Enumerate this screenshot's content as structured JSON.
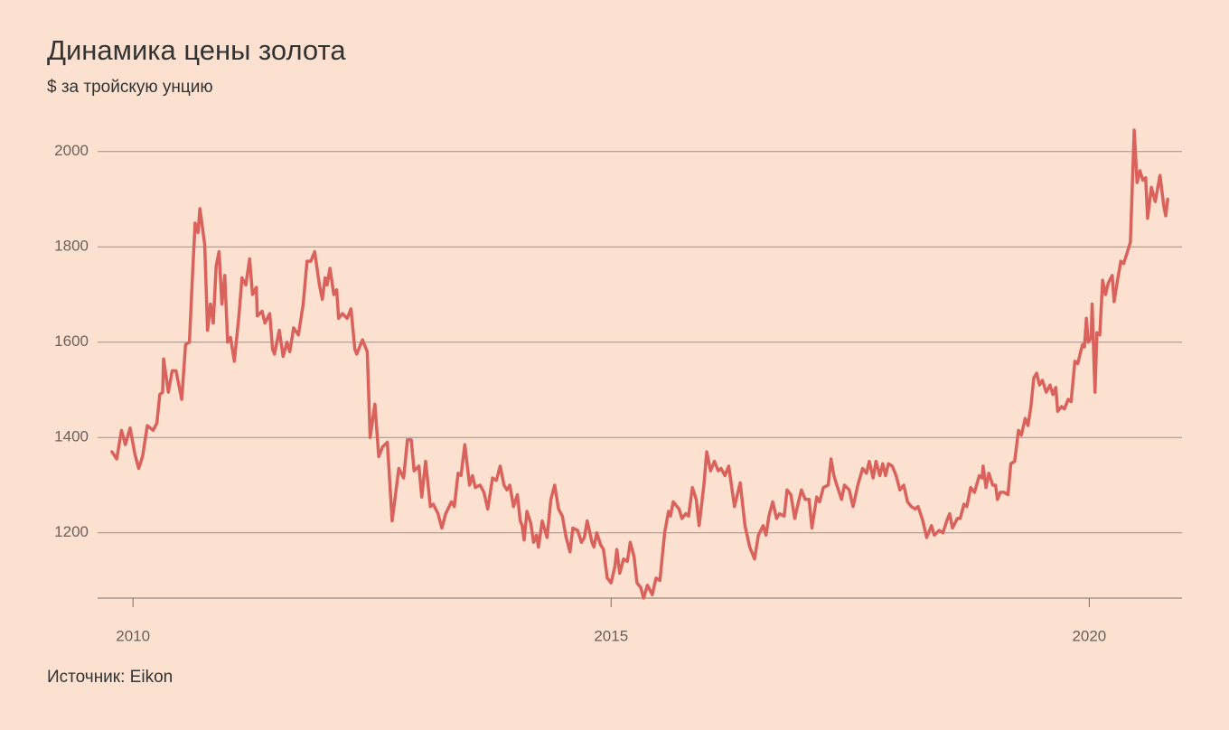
{
  "chart_data": {
    "type": "line",
    "title": "Динамика цены золота",
    "subtitle": "$ за тройскую унцию",
    "source": "Источник: Eikon",
    "color": "#d9625c",
    "grid": true,
    "xlim": [
      2009.63,
      2020.97
    ],
    "xticks": [
      2010,
      2015,
      2020
    ],
    "ylim": [
      1063,
      2100
    ],
    "yticks": [
      1200,
      1400,
      1600,
      1800,
      2000
    ],
    "x": [
      2009.78,
      2009.83,
      2009.88,
      2009.92,
      2009.97,
      2010.02,
      2010.06,
      2010.1,
      2010.15,
      2010.21,
      2010.25,
      2010.28,
      2010.31,
      2010.32,
      2010.37,
      2010.41,
      2010.45,
      2010.51,
      2010.55,
      2010.59,
      2010.62,
      2010.65,
      2010.68,
      2010.7,
      2010.75,
      2010.78,
      2010.81,
      2010.84,
      2010.87,
      2010.9,
      2010.93,
      2010.96,
      2010.99,
      2011.02,
      2011.06,
      2011.11,
      2011.14,
      2011.18,
      2011.22,
      2011.25,
      2011.29,
      2011.3,
      2011.35,
      2011.38,
      2011.43,
      2011.46,
      2011.48,
      2011.53,
      2011.57,
      2011.61,
      2011.64,
      2011.68,
      2011.73,
      2011.78,
      2011.82,
      2011.86,
      2011.9,
      2011.95,
      2011.98,
      2012.01,
      2012.03,
      2012.06,
      2012.1,
      2012.13,
      2012.15,
      2012.19,
      2012.24,
      2012.28,
      2012.32,
      2012.34,
      2012.4,
      2012.45,
      2012.48,
      2012.53,
      2012.57,
      2012.61,
      2012.66,
      2012.71,
      2012.78,
      2012.83,
      2012.87,
      2012.91,
      2012.94,
      2012.99,
      2013.02,
      2013.06,
      2013.11,
      2013.14,
      2013.19,
      2013.23,
      2013.27,
      2013.33,
      2013.36,
      2013.4,
      2013.43,
      2013.47,
      2013.52,
      2013.55,
      2013.58,
      2013.63,
      2013.67,
      2013.71,
      2013.76,
      2013.8,
      2013.84,
      2013.88,
      2013.91,
      2013.94,
      2013.98,
      2014.02,
      2014.05,
      2014.07,
      2014.09,
      2014.12,
      2014.16,
      2014.19,
      2014.22,
      2014.24,
      2014.28,
      2014.33,
      2014.37,
      2014.41,
      2014.45,
      2014.49,
      2014.53,
      2014.57,
      2014.6,
      2014.65,
      2014.69,
      2014.72,
      2014.75,
      2014.8,
      2014.82,
      2014.85,
      2014.89,
      2014.92,
      2014.96,
      2015.0,
      2015.04,
      2015.06,
      2015.09,
      2015.13,
      2015.17,
      2015.2,
      2015.24,
      2015.27,
      2015.31,
      2015.34,
      2015.38,
      2015.43,
      2015.47,
      2015.51,
      2015.56,
      2015.6,
      2015.62,
      2015.65,
      2015.71,
      2015.74,
      2015.78,
      2015.81,
      2015.85,
      2015.89,
      2015.92,
      2015.97,
      2016.0,
      2016.04,
      2016.08,
      2016.12,
      2016.15,
      2016.19,
      2016.23,
      2016.29,
      2016.35,
      2016.4,
      2016.45,
      2016.5,
      2016.54,
      2016.59,
      2016.62,
      2016.65,
      2016.69,
      2016.73,
      2016.76,
      2016.81,
      2016.84,
      2016.88,
      2016.92,
      2016.96,
      2016.99,
      2017.03,
      2017.07,
      2017.1,
      2017.15,
      2017.18,
      2017.22,
      2017.27,
      2017.3,
      2017.33,
      2017.36,
      2017.41,
      2017.44,
      2017.49,
      2017.53,
      2017.58,
      2017.63,
      2017.67,
      2017.7,
      2017.74,
      2017.77,
      2017.81,
      2017.84,
      2017.87,
      2017.9,
      2017.94,
      2017.98,
      2018.02,
      2018.06,
      2018.1,
      2018.14,
      2018.18,
      2018.21,
      2018.26,
      2018.3,
      2018.35,
      2018.38,
      2018.43,
      2018.47,
      2018.51,
      2018.54,
      2018.57,
      2018.62,
      2018.65,
      2018.69,
      2018.72,
      2018.76,
      2018.8,
      2018.85,
      2018.88,
      2018.89,
      2018.92,
      2018.95,
      2018.99,
      2019.02,
      2019.04,
      2019.07,
      2019.11,
      2019.15,
      2019.18,
      2019.22,
      2019.26,
      2019.29,
      2019.33,
      2019.36,
      2019.39,
      2019.42,
      2019.45,
      2019.48,
      2019.51,
      2019.55,
      2019.59,
      2019.62,
      2019.65,
      2019.67,
      2019.71,
      2019.74,
      2019.78,
      2019.81,
      2019.85,
      2019.88,
      2019.91,
      2019.93,
      2019.95,
      2019.97,
      2019.99,
      2020.02,
      2020.03,
      2020.06,
      2020.08,
      2020.11,
      2020.14,
      2020.17,
      2020.2,
      2020.24,
      2020.26,
      2020.3,
      2020.33,
      2020.36,
      2020.4,
      2020.43,
      2020.47,
      2020.5,
      2020.53,
      2020.56,
      2020.59,
      2020.61,
      2020.65,
      2020.69,
      2020.74,
      2020.78,
      2020.8,
      2020.82
    ],
    "values": [
      1370,
      1355,
      1415,
      1385,
      1420,
      1365,
      1335,
      1360,
      1425,
      1415,
      1430,
      1490,
      1495,
      1565,
      1495,
      1540,
      1540,
      1480,
      1595,
      1600,
      1730,
      1850,
      1830,
      1880,
      1805,
      1625,
      1680,
      1640,
      1760,
      1790,
      1680,
      1740,
      1600,
      1610,
      1560,
      1660,
      1735,
      1720,
      1775,
      1700,
      1715,
      1655,
      1665,
      1640,
      1660,
      1585,
      1575,
      1625,
      1570,
      1600,
      1580,
      1630,
      1615,
      1680,
      1770,
      1770,
      1790,
      1720,
      1690,
      1735,
      1720,
      1755,
      1700,
      1710,
      1650,
      1660,
      1650,
      1670,
      1585,
      1575,
      1605,
      1580,
      1400,
      1470,
      1360,
      1380,
      1390,
      1225,
      1335,
      1315,
      1395,
      1395,
      1330,
      1340,
      1275,
      1350,
      1255,
      1260,
      1240,
      1210,
      1240,
      1265,
      1255,
      1325,
      1320,
      1385,
      1300,
      1320,
      1295,
      1300,
      1285,
      1250,
      1315,
      1310,
      1340,
      1300,
      1290,
      1300,
      1255,
      1280,
      1225,
      1215,
      1185,
      1245,
      1220,
      1180,
      1195,
      1170,
      1225,
      1190,
      1270,
      1300,
      1250,
      1235,
      1190,
      1160,
      1210,
      1205,
      1180,
      1190,
      1225,
      1180,
      1170,
      1200,
      1175,
      1165,
      1105,
      1095,
      1130,
      1165,
      1115,
      1145,
      1140,
      1180,
      1150,
      1095,
      1085,
      1063,
      1090,
      1070,
      1105,
      1100,
      1200,
      1245,
      1235,
      1265,
      1250,
      1230,
      1240,
      1235,
      1295,
      1270,
      1215,
      1300,
      1370,
      1330,
      1350,
      1330,
      1335,
      1320,
      1340,
      1255,
      1305,
      1215,
      1170,
      1145,
      1195,
      1215,
      1195,
      1235,
      1265,
      1230,
      1240,
      1235,
      1290,
      1280,
      1230,
      1265,
      1290,
      1270,
      1270,
      1210,
      1275,
      1265,
      1295,
      1300,
      1355,
      1320,
      1300,
      1270,
      1300,
      1290,
      1255,
      1300,
      1335,
      1325,
      1350,
      1315,
      1350,
      1320,
      1345,
      1320,
      1345,
      1340,
      1320,
      1290,
      1300,
      1265,
      1255,
      1250,
      1255,
      1225,
      1190,
      1215,
      1195,
      1205,
      1200,
      1225,
      1240,
      1210,
      1230,
      1230,
      1260,
      1255,
      1295,
      1285,
      1320,
      1315,
      1340,
      1295,
      1325,
      1300,
      1300,
      1270,
      1285,
      1285,
      1280,
      1345,
      1350,
      1415,
      1405,
      1440,
      1425,
      1465,
      1525,
      1535,
      1510,
      1520,
      1495,
      1510,
      1490,
      1505,
      1455,
      1465,
      1460,
      1480,
      1475,
      1560,
      1555,
      1580,
      1595,
      1590,
      1650,
      1600,
      1610,
      1680,
      1495,
      1620,
      1615,
      1730,
      1700,
      1725,
      1740,
      1685,
      1735,
      1770,
      1765,
      1790,
      1810,
      2045,
      1935,
      1960,
      1940,
      1945,
      1860,
      1925,
      1895,
      1950,
      1885,
      1865,
      1900
    ]
  }
}
